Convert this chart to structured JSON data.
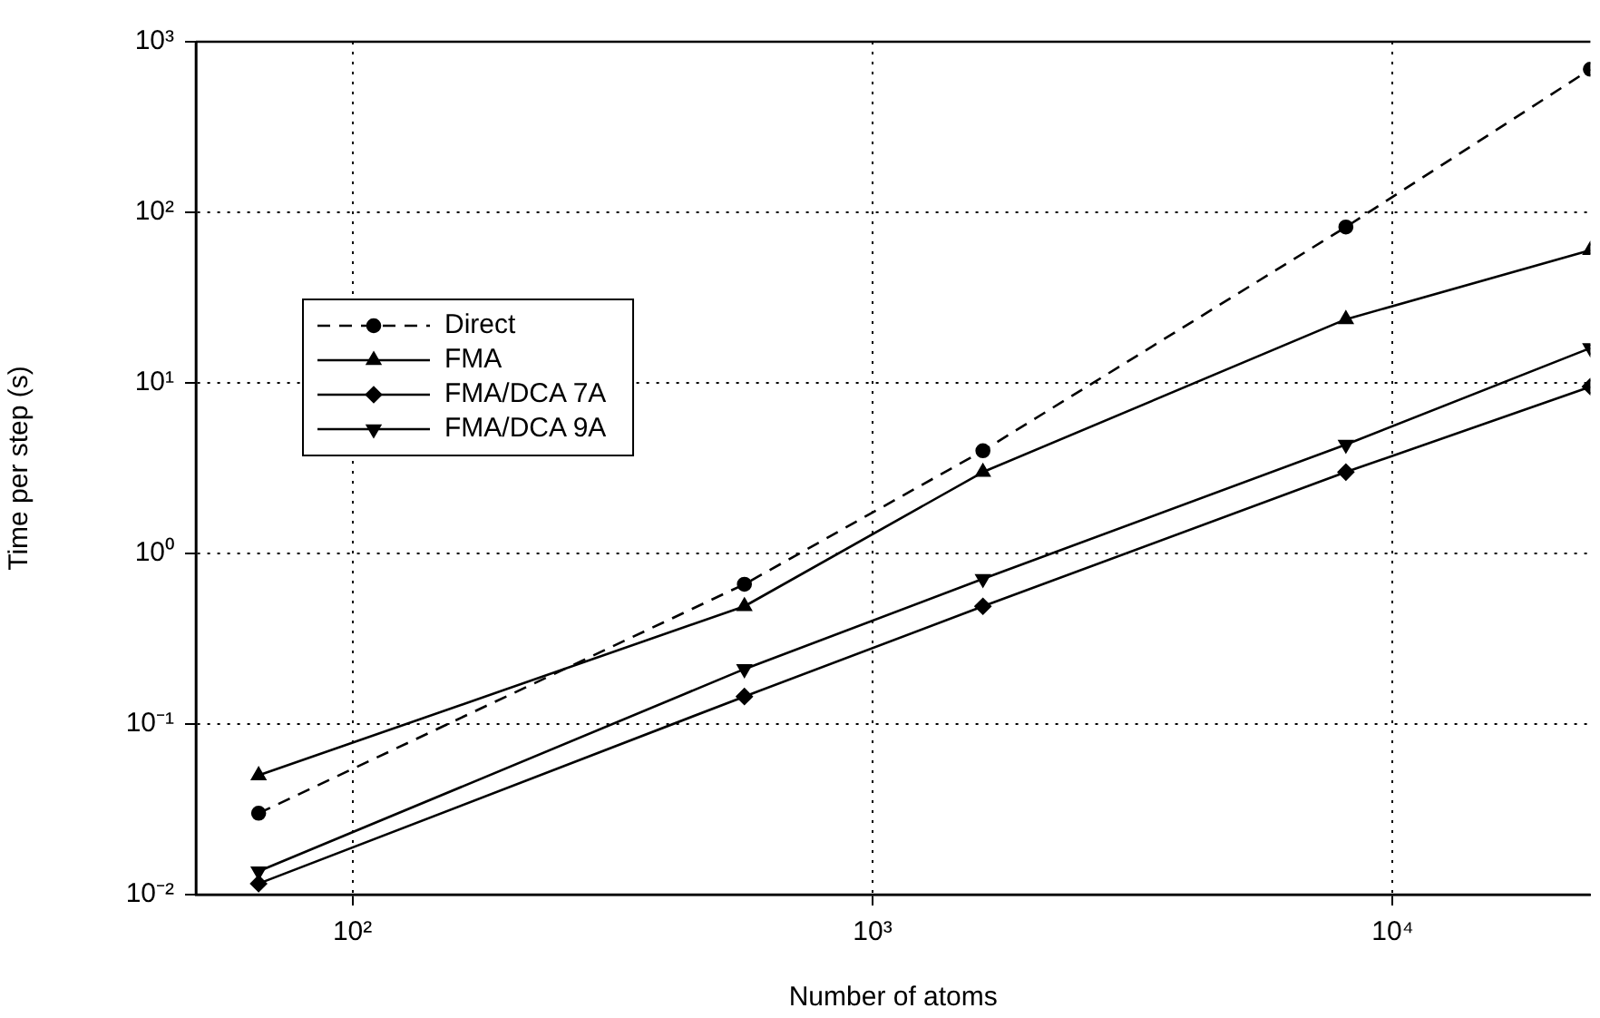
{
  "chart_data": {
    "type": "line",
    "xlabel": "Number of atoms",
    "ylabel": "Time per step (s)",
    "log": "xy",
    "grid": true,
    "legend": "top left",
    "x": [
      66,
      567,
      1630,
      8130,
      24000
    ],
    "xlim": [
      50,
      24000
    ],
    "xticks": [
      {
        "value": 100,
        "label": "10²"
      },
      {
        "value": 1000,
        "label": "10³"
      },
      {
        "value": 10000,
        "label": "10⁴"
      }
    ],
    "ylim": [
      0.01,
      1000
    ],
    "yticks": [
      {
        "value": 0.01,
        "label": "10⁻²"
      },
      {
        "value": 0.1,
        "label": "10⁻¹"
      },
      {
        "value": 1,
        "label": "10⁰"
      },
      {
        "value": 10,
        "label": "10¹"
      },
      {
        "value": 100,
        "label": "10²"
      },
      {
        "value": 1000,
        "label": "10³"
      }
    ],
    "series": [
      {
        "name": "Direct",
        "color": "#000000",
        "marker": "circle",
        "line_style": "dashed",
        "values": [
          0.03,
          0.66,
          4.0,
          82,
          690
        ]
      },
      {
        "name": "FMA",
        "color": "#000000",
        "marker": "triangle",
        "line_style": "solid",
        "values": [
          0.05,
          0.49,
          3.0,
          23.6,
          60
        ]
      },
      {
        "name": "FMA/DCA 7A",
        "color": "#000000",
        "marker": "diamond",
        "line_style": "solid",
        "values": [
          0.0116,
          0.145,
          0.49,
          3.0,
          9.5
        ]
      },
      {
        "name": "FMA/DCA 9A",
        "color": "#000000",
        "marker": "triangle-down",
        "line_style": "solid",
        "values": [
          0.0137,
          0.21,
          0.71,
          4.35,
          16
        ]
      }
    ]
  }
}
